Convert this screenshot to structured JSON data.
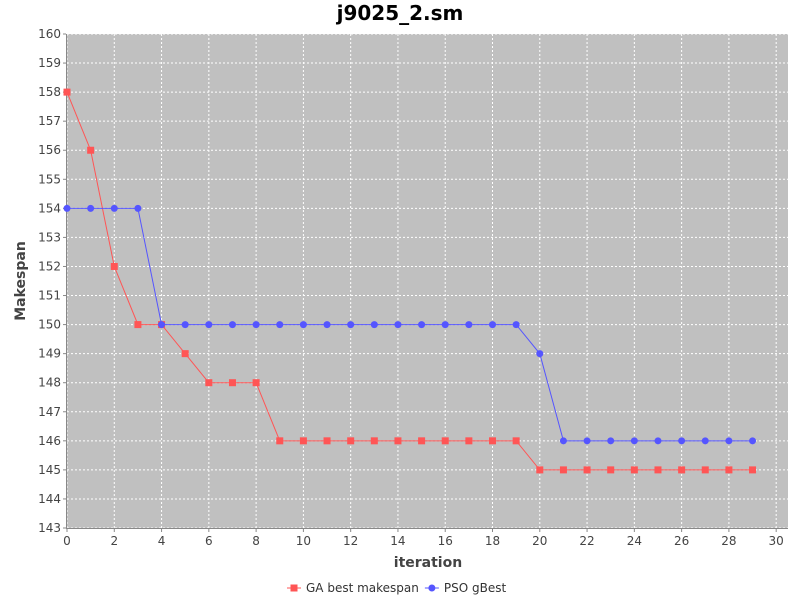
{
  "chart_data": {
    "type": "line",
    "title": "j9025_2.sm",
    "xlabel": "iteration",
    "ylabel": "Makespan",
    "xlim": [
      0,
      30.5
    ],
    "ylim": [
      143,
      160
    ],
    "xticks": [
      0,
      2,
      4,
      6,
      8,
      10,
      12,
      14,
      16,
      18,
      20,
      22,
      24,
      26,
      28,
      30
    ],
    "yticks": [
      143,
      144,
      145,
      146,
      147,
      148,
      149,
      150,
      151,
      152,
      153,
      154,
      155,
      156,
      157,
      158,
      159,
      160
    ],
    "grid": true,
    "legend_position": "bottom",
    "x": [
      0,
      1,
      2,
      3,
      4,
      5,
      6,
      7,
      8,
      9,
      10,
      11,
      12,
      13,
      14,
      15,
      16,
      17,
      18,
      19,
      20,
      21,
      22,
      23,
      24,
      25,
      26,
      27,
      28,
      29
    ],
    "series": [
      {
        "name": "GA best makespan",
        "color": "#ff5555",
        "marker": "square",
        "values": [
          158,
          156,
          152,
          150,
          150,
          149,
          148,
          148,
          148,
          146,
          146,
          146,
          146,
          146,
          146,
          146,
          146,
          146,
          146,
          146,
          145,
          145,
          145,
          145,
          145,
          145,
          145,
          145,
          145,
          145
        ]
      },
      {
        "name": "PSO gBest",
        "color": "#5555ff",
        "marker": "circle",
        "values": [
          154,
          154,
          154,
          154,
          150,
          150,
          150,
          150,
          150,
          150,
          150,
          150,
          150,
          150,
          150,
          150,
          150,
          150,
          150,
          150,
          149,
          146,
          146,
          146,
          146,
          146,
          146,
          146,
          146,
          146
        ]
      }
    ],
    "colors": {
      "plot_background": "#c0c0c0",
      "grid": "#ffffff",
      "axis": "#888888"
    }
  }
}
